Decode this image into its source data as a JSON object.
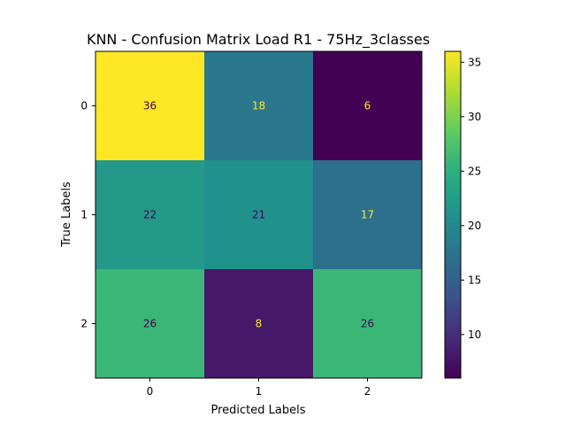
{
  "chart_data": {
    "type": "heatmap",
    "title": "KNN - Confusion Matrix Load R1 - 75Hz_3classes",
    "xlabel": "Predicted Labels",
    "ylabel": "True Labels",
    "x_categories": [
      "0",
      "1",
      "2"
    ],
    "y_categories": [
      "0",
      "1",
      "2"
    ],
    "values": [
      [
        36,
        18,
        6
      ],
      [
        22,
        21,
        17
      ],
      [
        26,
        8,
        26
      ]
    ],
    "colormap": "viridis",
    "colorbar": {
      "min": 6,
      "max": 36,
      "ticks": [
        10,
        15,
        20,
        25,
        30,
        35
      ]
    }
  }
}
